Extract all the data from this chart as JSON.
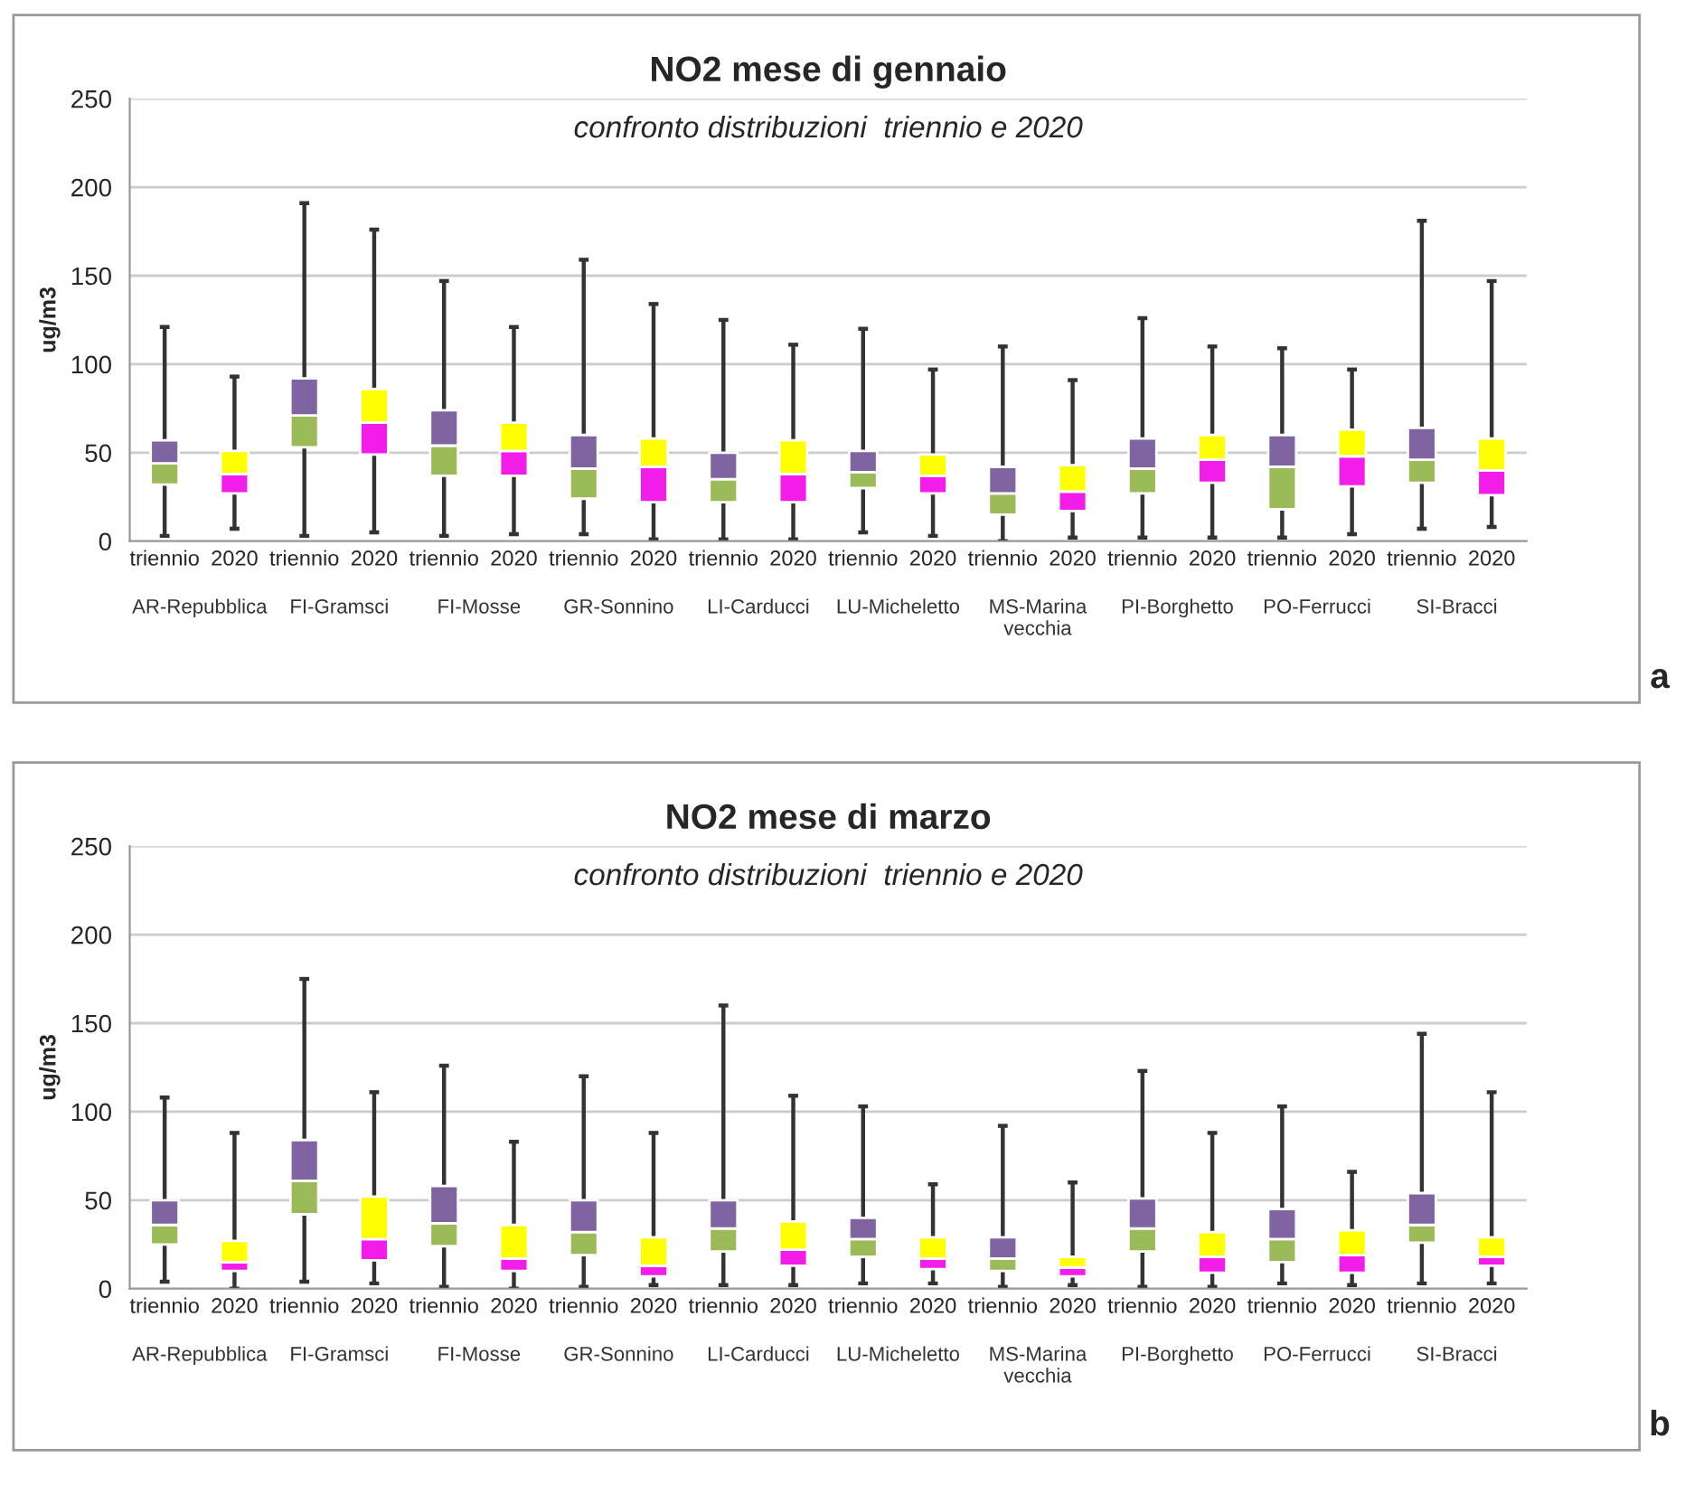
{
  "chart_data": [
    {
      "type": "box",
      "title": "NO2 mese di gennaio",
      "subtitle": "confronto distribuzioni  triennio e 2020",
      "ylabel": "ug/m3",
      "categories": [
        "AR-Repubblica",
        "FI-Gramsci",
        "FI-Mosse",
        "GR-Sonnino",
        "LI-Carducci",
        "LU-Micheletto",
        "MS-Marina\nvecchia",
        "PI-Borghetto",
        "PO-Ferrucci",
        "SI-Bracci"
      ],
      "series": [
        {
          "name": "triennio",
          "colors": [
            [
              "#9bbb59",
              "#8064a2"
            ],
            [
              "#9bbb59",
              "#8064a2"
            ],
            [
              "#9bbb59",
              "#8064a2"
            ],
            [
              "#9bbb59",
              "#8064a2"
            ],
            [
              "#9bbb59",
              "#8064a2"
            ],
            [
              "#9bbb59",
              "#8064a2"
            ],
            [
              "#9bbb59",
              "#8064a2"
            ],
            [
              "#9bbb59",
              "#8064a2"
            ],
            [
              "#9bbb59",
              "#8064a2"
            ],
            [
              "#9bbb59",
              "#8064a2"
            ]
          ],
          "boxes": [
            {
              "low": 3,
              "q1": 32,
              "median": 44,
              "q3": 57,
              "high": 121
            },
            {
              "low": 3,
              "q1": 53,
              "median": 71,
              "q3": 92,
              "high": 191
            },
            {
              "low": 3,
              "q1": 37,
              "median": 54,
              "q3": 74,
              "high": 147
            },
            {
              "low": 4,
              "q1": 24,
              "median": 41,
              "q3": 60,
              "high": 159
            },
            {
              "low": 1,
              "q1": 22,
              "median": 35,
              "q3": 50,
              "high": 125
            },
            {
              "low": 5,
              "q1": 30,
              "median": 39,
              "q3": 51,
              "high": 120
            },
            {
              "low": 0,
              "q1": 15,
              "median": 27,
              "q3": 42,
              "high": 110
            },
            {
              "low": 2,
              "q1": 27,
              "median": 41,
              "q3": 58,
              "high": 126
            },
            {
              "low": 2,
              "q1": 18,
              "median": 42,
              "q3": 60,
              "high": 109
            },
            {
              "low": 7,
              "q1": 33,
              "median": 46,
              "q3": 64,
              "high": 181
            }
          ]
        },
        {
          "name": "2020",
          "colors": [
            [
              "#f21de8",
              "#ffff00"
            ],
            [
              "#f21de8",
              "#ffff00"
            ],
            [
              "#f21de8",
              "#ffff00"
            ],
            [
              "#f21de8",
              "#ffff00"
            ],
            [
              "#f21de8",
              "#ffff00"
            ],
            [
              "#f21de8",
              "#ffff00"
            ],
            [
              "#f21de8",
              "#ffff00"
            ],
            [
              "#f21de8",
              "#ffff00"
            ],
            [
              "#f21de8",
              "#ffff00"
            ],
            [
              "#f21de8",
              "#ffff00"
            ]
          ],
          "boxes": [
            {
              "low": 7,
              "q1": 27,
              "median": 38,
              "q3": 51,
              "high": 93
            },
            {
              "low": 5,
              "q1": 49,
              "median": 67,
              "q3": 86,
              "high": 176
            },
            {
              "low": 4,
              "q1": 37,
              "median": 51,
              "q3": 67,
              "high": 121
            },
            {
              "low": 1,
              "q1": 22,
              "median": 42,
              "q3": 58,
              "high": 134
            },
            {
              "low": 1,
              "q1": 22,
              "median": 38,
              "q3": 57,
              "high": 111
            },
            {
              "low": 3,
              "q1": 27,
              "median": 37,
              "q3": 49,
              "high": 97
            },
            {
              "low": 2,
              "q1": 17,
              "median": 28,
              "q3": 43,
              "high": 91
            },
            {
              "low": 2,
              "q1": 33,
              "median": 46,
              "q3": 60,
              "high": 110
            },
            {
              "low": 4,
              "q1": 31,
              "median": 48,
              "q3": 63,
              "high": 97
            },
            {
              "low": 8,
              "q1": 26,
              "median": 40,
              "q3": 58,
              "high": 147
            }
          ]
        }
      ],
      "ylim": [
        0,
        250
      ],
      "yticks": [
        0,
        50,
        100,
        150,
        200,
        250
      ],
      "grid": "y",
      "annotations": [
        "a"
      ]
    },
    {
      "type": "box",
      "title": "NO2 mese di marzo",
      "subtitle": "confronto distribuzioni  triennio e 2020",
      "ylabel": "ug/m3",
      "categories": [
        "AR-Repubblica",
        "FI-Gramsci",
        "FI-Mosse",
        "GR-Sonnino",
        "LI-Carducci",
        "LU-Micheletto",
        "MS-Marina\nvecchia",
        "PI-Borghetto",
        "PO-Ferrucci",
        "SI-Bracci"
      ],
      "series": [
        {
          "name": "triennio",
          "colors": [
            [
              "#9bbb59",
              "#8064a2"
            ],
            [
              "#9bbb59",
              "#8064a2"
            ],
            [
              "#9bbb59",
              "#8064a2"
            ],
            [
              "#9bbb59",
              "#8064a2"
            ],
            [
              "#9bbb59",
              "#8064a2"
            ],
            [
              "#9bbb59",
              "#8064a2"
            ],
            [
              "#9bbb59",
              "#8064a2"
            ],
            [
              "#9bbb59",
              "#8064a2"
            ],
            [
              "#9bbb59",
              "#8064a2"
            ],
            [
              "#9bbb59",
              "#8064a2"
            ]
          ],
          "boxes": [
            {
              "low": 4,
              "q1": 25,
              "median": 36,
              "q3": 50,
              "high": 108
            },
            {
              "low": 4,
              "q1": 42,
              "median": 61,
              "q3": 84,
              "high": 175
            },
            {
              "low": 1,
              "q1": 24,
              "median": 37,
              "q3": 58,
              "high": 126
            },
            {
              "low": 1,
              "q1": 19,
              "median": 32,
              "q3": 50,
              "high": 120
            },
            {
              "low": 2,
              "q1": 21,
              "median": 34,
              "q3": 50,
              "high": 160
            },
            {
              "low": 3,
              "q1": 18,
              "median": 28,
              "q3": 40,
              "high": 103
            },
            {
              "low": 1,
              "q1": 10,
              "median": 17,
              "q3": 29,
              "high": 92
            },
            {
              "low": 1,
              "q1": 21,
              "median": 34,
              "q3": 51,
              "high": 123
            },
            {
              "low": 3,
              "q1": 15,
              "median": 28,
              "q3": 45,
              "high": 103
            },
            {
              "low": 3,
              "q1": 26,
              "median": 36,
              "q3": 54,
              "high": 144
            }
          ]
        },
        {
          "name": "2020",
          "colors": [
            [
              "#f21de8",
              "#ffff00"
            ],
            [
              "#f21de8",
              "#ffff00"
            ],
            [
              "#f21de8",
              "#ffff00"
            ],
            [
              "#f21de8",
              "#ffff00"
            ],
            [
              "#f21de8",
              "#ffff00"
            ],
            [
              "#f21de8",
              "#ffff00"
            ],
            [
              "#f21de8",
              "#ffff00"
            ],
            [
              "#f21de8",
              "#ffff00"
            ],
            [
              "#f21de8",
              "#ffff00"
            ],
            [
              "#f21de8",
              "#ffff00"
            ]
          ],
          "boxes": [
            {
              "low": 0,
              "q1": 10,
              "median": 15,
              "q3": 27,
              "high": 88
            },
            {
              "low": 3,
              "q1": 16,
              "median": 28,
              "q3": 52,
              "high": 111
            },
            {
              "low": 0,
              "q1": 10,
              "median": 17,
              "q3": 36,
              "high": 83
            },
            {
              "low": 2,
              "q1": 7,
              "median": 13,
              "q3": 29,
              "high": 88
            },
            {
              "low": 2,
              "q1": 13,
              "median": 22,
              "q3": 38,
              "high": 109
            },
            {
              "low": 3,
              "q1": 11,
              "median": 17,
              "q3": 29,
              "high": 59
            },
            {
              "low": 2,
              "q1": 7,
              "median": 12,
              "q3": 18,
              "high": 60
            },
            {
              "low": 1,
              "q1": 9,
              "median": 18,
              "q3": 32,
              "high": 88
            },
            {
              "low": 2,
              "q1": 9,
              "median": 19,
              "q3": 33,
              "high": 66
            },
            {
              "low": 3,
              "q1": 13,
              "median": 18,
              "q3": 29,
              "high": 111
            }
          ]
        }
      ],
      "ylim": [
        0,
        250
      ],
      "yticks": [
        0,
        50,
        100,
        150,
        200,
        250
      ],
      "grid": "y",
      "annotations": [
        "b"
      ]
    }
  ]
}
